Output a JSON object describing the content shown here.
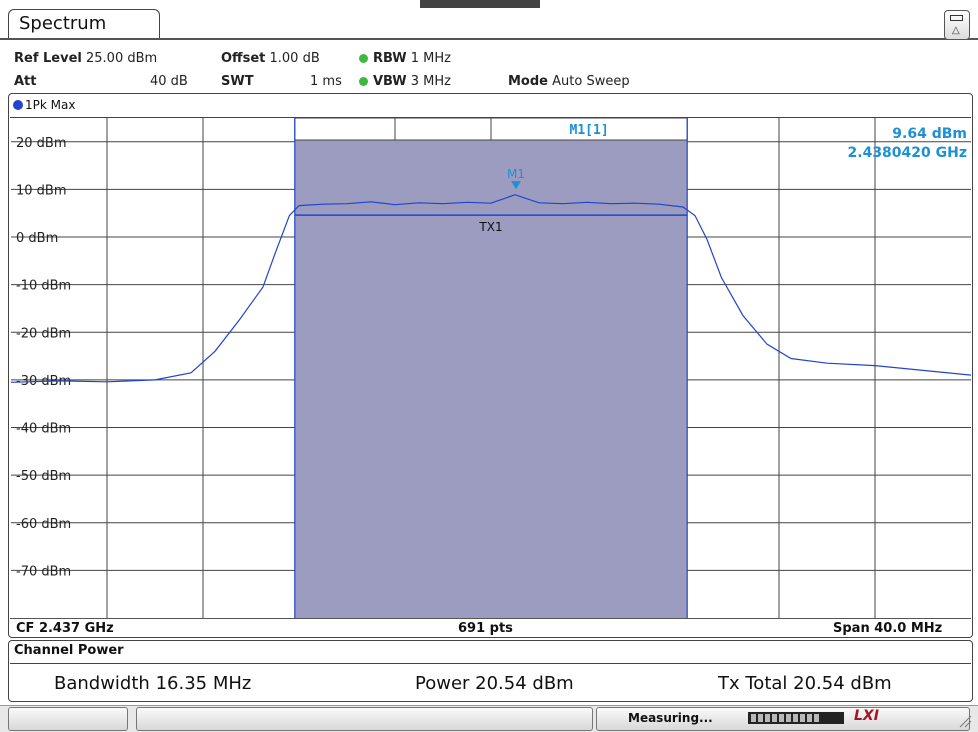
{
  "window": {
    "tab_label": "Spectrum"
  },
  "settings": {
    "ref_level_label": "Ref Level",
    "ref_level_value": "25.00 dBm",
    "offset_label": "Offset",
    "offset_value": "1.00 dB",
    "rbw_label": "RBW",
    "rbw_value": "1 MHz",
    "att_label": "Att",
    "att_value": "40 dB",
    "swt_label": "SWT",
    "swt_value": "1 ms",
    "vbw_label": "VBW",
    "vbw_value": "3 MHz",
    "mode_label": "Mode",
    "mode_value": "Auto Sweep"
  },
  "trace": {
    "label": "1Pk Max",
    "color": "#2244cc"
  },
  "marker": {
    "header": "M1[1]",
    "level": "9.64 dBm",
    "frequency": "2.4380420 GHz",
    "name": "M1",
    "color": "#1e90d6"
  },
  "channel_label": "TX1",
  "axis": {
    "cf": "CF 2.437 GHz",
    "points": "691 pts",
    "span": "Span 40.0 MHz"
  },
  "channel_power": {
    "title": "Channel Power",
    "bandwidth_label": "Bandwidth",
    "bandwidth_value": "16.35 MHz",
    "power_label": "Power",
    "power_value": "20.54 dBm",
    "tx_total_label": "Tx Total",
    "tx_total_value": "20.54 dBm"
  },
  "status": {
    "measuring": "Measuring...",
    "lxi": "LXI"
  },
  "chart_data": {
    "type": "line",
    "x_unit": "GHz",
    "xlim": [
      2.417,
      2.457
    ],
    "ylim": [
      -80,
      25
    ],
    "y_tick_labels": [
      "20 dBm",
      "10 dBm",
      "0 dBm",
      "-10 dBm",
      "-20 dBm",
      "-30 dBm",
      "-40 dBm",
      "-50 dBm",
      "-60 dBm",
      "-70 dBm"
    ],
    "y_ticks": [
      20,
      10,
      0,
      -10,
      -20,
      -30,
      -40,
      -50,
      -60,
      -70
    ],
    "grid": true,
    "channel_band": {
      "start": 2.428825,
      "stop": 2.445175,
      "color": "#9b9cc0"
    },
    "channel_level_dbm": 4.6,
    "series": [
      {
        "color": "#2244cc",
        "x": [
          2.417,
          2.419,
          2.421,
          2.423,
          2.4245,
          2.4255,
          2.4265,
          2.4275,
          2.428,
          2.4286,
          2.429,
          2.43,
          2.431,
          2.432,
          2.433,
          2.434,
          2.435,
          2.436,
          2.437,
          2.438,
          2.439,
          2.44,
          2.441,
          2.442,
          2.443,
          2.444,
          2.445,
          2.4455,
          2.446,
          2.4466,
          2.4475,
          2.4485,
          2.4495,
          2.451,
          2.453,
          2.455,
          2.457
        ],
        "y": [
          -30.5,
          -30.2,
          -30.4,
          -30.0,
          -28.5,
          -24.0,
          -17.5,
          -10.5,
          -3.5,
          4.5,
          6.6,
          6.9,
          7.0,
          7.4,
          6.8,
          7.2,
          7.0,
          7.3,
          7.1,
          8.9,
          7.2,
          7.0,
          7.3,
          7.0,
          7.1,
          6.9,
          6.3,
          4.5,
          -0.5,
          -8.5,
          -16.5,
          -22.5,
          -25.5,
          -26.5,
          -27.0,
          -28.0,
          -29.0
        ]
      }
    ],
    "marker": {
      "x": 2.438042,
      "y": 9.64
    }
  }
}
